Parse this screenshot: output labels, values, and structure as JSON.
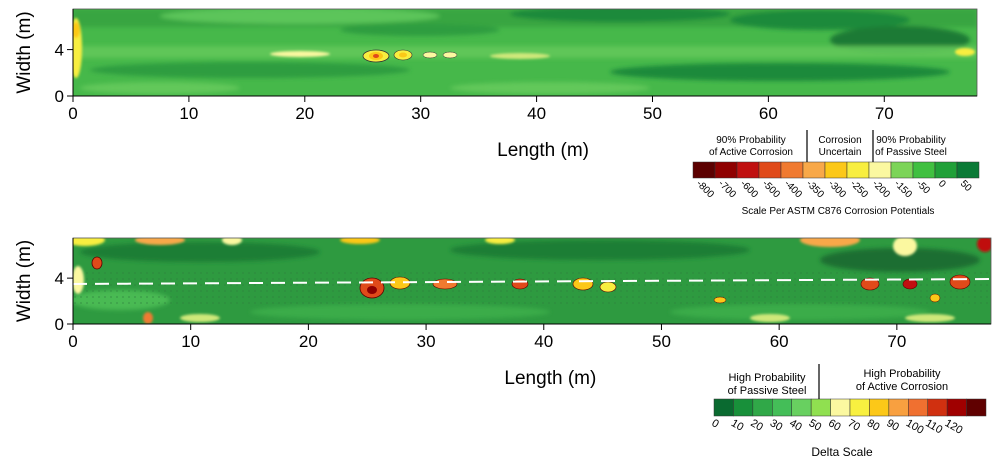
{
  "chart_data": [
    {
      "type": "heatmap",
      "xlabel": "Length (m)",
      "ylabel": "Width (m)",
      "xticks": [
        0,
        10,
        20,
        30,
        40,
        50,
        60,
        70
      ],
      "yticks": [
        0,
        4
      ],
      "xlim": [
        0,
        78
      ],
      "ylim": [
        0,
        7.5
      ],
      "legend": {
        "title": "Scale Per ASTM C876 Corrosion Potentials",
        "group_labels": [
          "90% Probability\nof Active Corrosion",
          "Corrosion\nUncertain",
          "90% Probability\nof Passive Steel"
        ],
        "tick_labels": [
          "-800",
          "-700",
          "-600",
          "-500",
          "-400",
          "-350",
          "-300",
          "-250",
          "-200",
          "-150",
          "-50",
          "0",
          "50"
        ],
        "colors": [
          "#5c0000",
          "#8f0000",
          "#c01010",
          "#e04a1a",
          "#f07a30",
          "#f8a848",
          "#fcc818",
          "#f8ee40",
          "#fbf8a0",
          "#7cd458",
          "#40c040",
          "#20a038",
          "#0a7a36"
        ]
      }
    },
    {
      "type": "heatmap",
      "xlabel": "Length (m)",
      "ylabel": "Width (m)",
      "xticks": [
        0,
        10,
        20,
        30,
        40,
        50,
        60,
        70
      ],
      "yticks": [
        0,
        4
      ],
      "xlim": [
        0,
        78
      ],
      "ylim": [
        0,
        7.5
      ],
      "legend": {
        "title": "Delta Scale",
        "group_labels": [
          "High Probability\nof Passive Steel",
          "High Probability\nof Active Corrosion"
        ],
        "tick_labels": [
          "0",
          "10",
          "20",
          "30",
          "40",
          "50",
          "60",
          "70",
          "80",
          "90",
          "100",
          "110",
          "120"
        ],
        "colors": [
          "#0a6a30",
          "#18903a",
          "#30a848",
          "#44be58",
          "#68d060",
          "#90e050",
          "#fbf8a0",
          "#f8f040",
          "#fcc818",
          "#f8a040",
          "#f07030",
          "#d03010",
          "#a00000",
          "#600000"
        ]
      }
    }
  ]
}
